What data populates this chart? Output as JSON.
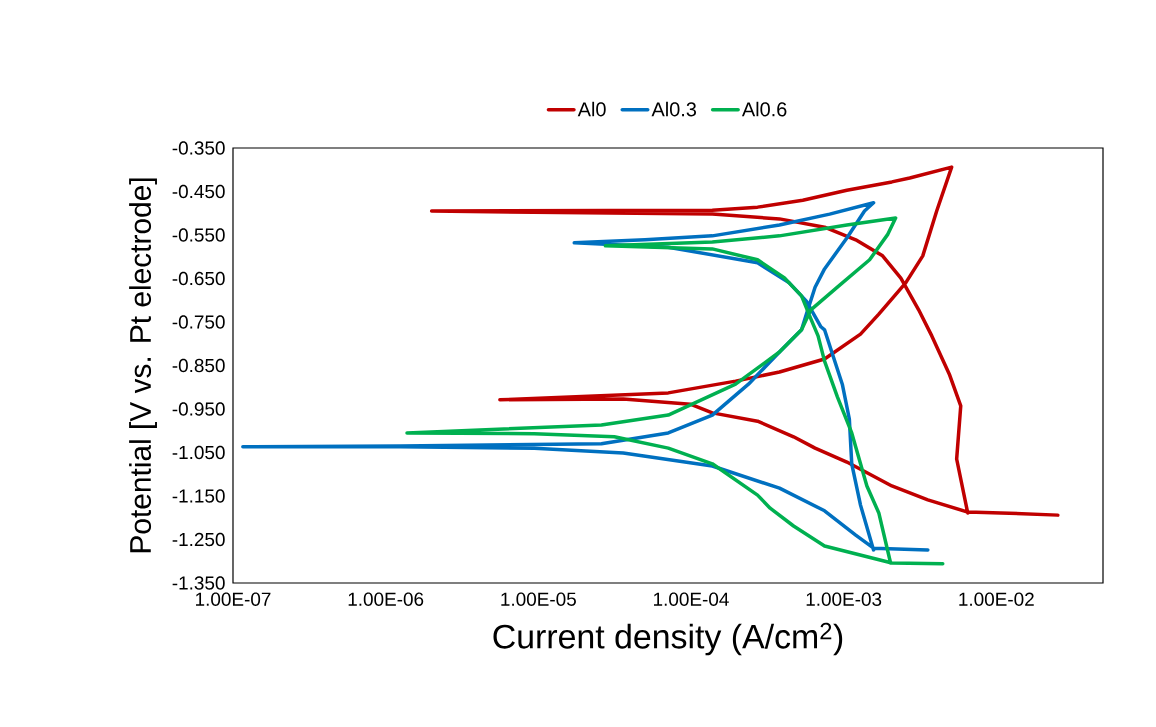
{
  "chart_data": {
    "type": "line",
    "xlabel": "Current density (A/cm$^{2}$)",
    "ylabel": "Potential [V vs. Pt electrode]",
    "log": "x",
    "grid": false,
    "legend": "top",
    "marker": "none",
    "line_style": "solid",
    "xlim": [
      1e-07,
      0.05
    ],
    "ylim": [
      -1.35,
      -0.35
    ],
    "xticks": [
      {
        "value": 1e-07,
        "label": "1.00E-07"
      },
      {
        "value": 1e-06,
        "label": "1.00E-06"
      },
      {
        "value": 1e-05,
        "label": "1.00E-05"
      },
      {
        "value": 0.0001,
        "label": "1.00E-04"
      },
      {
        "value": 0.001,
        "label": "1.00E-03"
      },
      {
        "value": 0.01,
        "label": "1.00E-02"
      }
    ],
    "yticks": [
      {
        "value": -0.35,
        "label": "-0.350"
      },
      {
        "value": -0.45,
        "label": "-0.450"
      },
      {
        "value": -0.55,
        "label": "-0.550"
      },
      {
        "value": -0.65,
        "label": "-0.650"
      },
      {
        "value": -0.75,
        "label": "-0.750"
      },
      {
        "value": -0.85,
        "label": "-0.850"
      },
      {
        "value": -0.95,
        "label": "-0.950"
      },
      {
        "value": -1.05,
        "label": "-1.050"
      },
      {
        "value": -1.15,
        "label": "-1.150"
      },
      {
        "value": -1.25,
        "label": "-1.250"
      },
      {
        "value": -1.35,
        "label": "-1.350"
      }
    ],
    "series": [
      {
        "name": "Al0",
        "color": "#c00000",
        "x": [
          0.0253,
          0.0107,
          0.0065,
          0.00356,
          0.00207,
          0.00105,
          0.00065,
          0.00047,
          0.000273,
          0.000138,
          9.9e-05,
          3.6e-05,
          5.6e-06,
          7.1e-05,
          0.000196,
          0.00038,
          0.00075,
          0.00129,
          0.0017,
          0.00255,
          0.0033,
          0.00407,
          0.0051,
          0.00271,
          0.00207,
          0.00105,
          0.00054,
          0.000273,
          0.000138,
          2e-06,
          0.000138,
          0.00038,
          0.00075,
          0.0012,
          0.0018,
          0.00237,
          0.0031,
          0.00378,
          0.00495,
          0.00585,
          0.0055,
          0.0065
        ],
        "values": [
          -1.194,
          -1.189,
          -1.187,
          -1.159,
          -1.127,
          -1.072,
          -1.04,
          -1.014,
          -0.978,
          -0.959,
          -0.939,
          -0.927,
          -0.929,
          -0.913,
          -0.886,
          -0.865,
          -0.835,
          -0.778,
          -0.732,
          -0.66,
          -0.598,
          -0.495,
          -0.394,
          -0.419,
          -0.428,
          -0.447,
          -0.47,
          -0.486,
          -0.493,
          -0.495,
          -0.502,
          -0.513,
          -0.532,
          -0.561,
          -0.598,
          -0.649,
          -0.722,
          -0.782,
          -0.872,
          -0.943,
          -1.065,
          -1.189
        ]
      },
      {
        "name": "Al0.3",
        "color": "#0070c0",
        "x": [
          0.00356,
          0.00157,
          0.0012,
          0.00075,
          0.00038,
          0.000138,
          3.6e-05,
          9.4e-06,
          1.25e-06,
          1.16e-07,
          1.25e-06,
          2.59e-05,
          7.1e-05,
          0.000138,
          0.000238,
          0.00038,
          0.00053,
          0.00057,
          0.00065,
          0.00075,
          0.00105,
          0.00137,
          0.00157,
          0.00081,
          0.00038,
          0.000138,
          5e-05,
          1.72e-05,
          7.1e-05,
          0.000273,
          0.00044,
          0.00057,
          0.00071,
          0.00075,
          0.00098,
          0.00109,
          0.00113,
          0.00129,
          0.00157
        ],
        "values": [
          -1.274,
          -1.27,
          -1.24,
          -1.184,
          -1.132,
          -1.081,
          -1.051,
          -1.04,
          -1.037,
          -1.037,
          -1.035,
          -1.03,
          -1.005,
          -0.964,
          -0.893,
          -0.819,
          -0.768,
          -0.732,
          -0.67,
          -0.628,
          -0.557,
          -0.495,
          -0.476,
          -0.502,
          -0.527,
          -0.552,
          -0.561,
          -0.568,
          -0.578,
          -0.614,
          -0.66,
          -0.702,
          -0.761,
          -0.768,
          -0.893,
          -0.973,
          -1.076,
          -1.171,
          -1.274
        ]
      },
      {
        "name": "Al0.6",
        "color": "#00b050",
        "x": [
          0.00446,
          0.00207,
          0.00075,
          0.00047,
          0.00033,
          0.000273,
          0.000138,
          7.1e-05,
          3.15e-05,
          9.4e-06,
          1.38e-06,
          2.59e-05,
          7.1e-05,
          0.000196,
          0.00038,
          0.00053,
          0.00061,
          0.00091,
          0.00148,
          0.00195,
          0.00219,
          0.00105,
          0.00038,
          0.000138,
          2.75e-05,
          0.000138,
          0.000273,
          0.00041,
          0.00053,
          0.00061,
          0.00068,
          0.00075,
          0.00091,
          0.00113,
          0.00142,
          0.0017,
          0.00203
        ],
        "values": [
          -1.306,
          -1.304,
          -1.265,
          -1.219,
          -1.178,
          -1.148,
          -1.076,
          -1.04,
          -1.014,
          -1.007,
          -1.005,
          -0.987,
          -0.964,
          -0.893,
          -0.819,
          -0.768,
          -0.722,
          -0.67,
          -0.607,
          -0.548,
          -0.511,
          -0.527,
          -0.552,
          -0.566,
          -0.575,
          -0.582,
          -0.607,
          -0.649,
          -0.69,
          -0.743,
          -0.782,
          -0.84,
          -0.922,
          -1.005,
          -1.127,
          -1.189,
          -1.304
        ]
      }
    ]
  }
}
